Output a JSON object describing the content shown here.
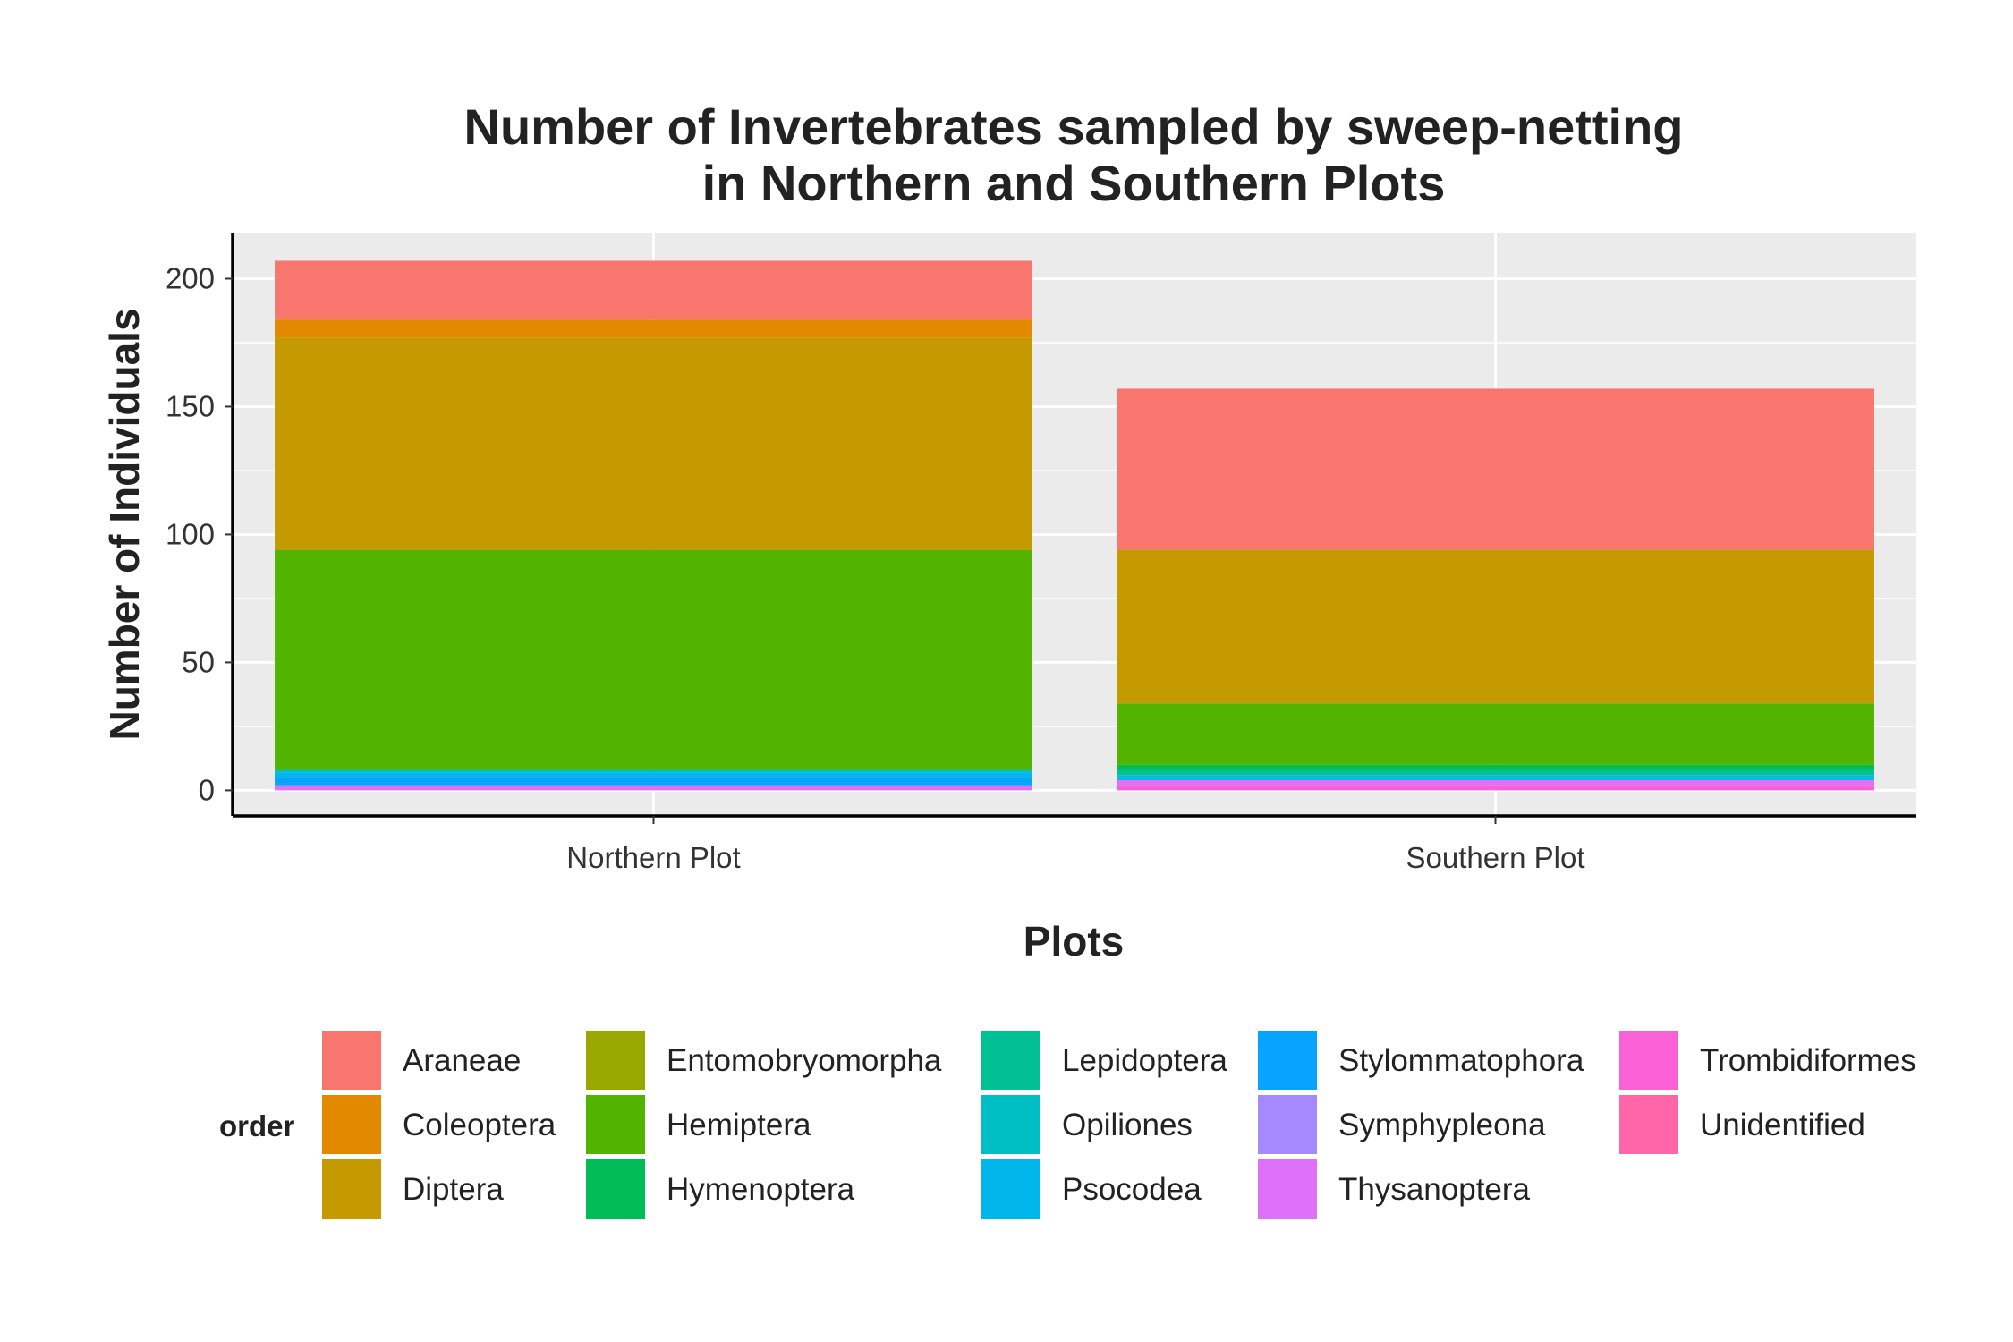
{
  "chart_data": {
    "type": "bar",
    "stacked": true,
    "title": [
      "Number of Invertebrates sampled by sweep-netting",
      "in Northern and Southern Plots"
    ],
    "xlabel": "Plots",
    "ylabel": "Number of Individuals",
    "categories": [
      "Northern Plot",
      "Southern Plot"
    ],
    "ylim": [
      -10,
      218
    ],
    "yticks": [
      0,
      50,
      100,
      150,
      200
    ],
    "grid": true,
    "legend": {
      "title": "order",
      "position": "bottom",
      "columns": 5
    },
    "series": [
      {
        "name": "Araneae",
        "color": "#F8766D",
        "values": [
          23,
          63
        ]
      },
      {
        "name": "Coleoptera",
        "color": "#E38900",
        "values": [
          7,
          0
        ]
      },
      {
        "name": "Diptera",
        "color": "#C49A00",
        "values": [
          83,
          60
        ]
      },
      {
        "name": "Entomobryomorpha",
        "color": "#99A800",
        "values": [
          0,
          0
        ]
      },
      {
        "name": "Hemiptera",
        "color": "#53B400",
        "values": [
          86,
          24
        ]
      },
      {
        "name": "Hymenoptera",
        "color": "#00BC56",
        "values": [
          0,
          2
        ]
      },
      {
        "name": "Lepidoptera",
        "color": "#00C094",
        "values": [
          0,
          2
        ]
      },
      {
        "name": "Opiliones",
        "color": "#00BFC4",
        "values": [
          1,
          1
        ]
      },
      {
        "name": "Psocodea",
        "color": "#00B6EB",
        "values": [
          2,
          1
        ]
      },
      {
        "name": "Stylommatophora",
        "color": "#06A4FF",
        "values": [
          3,
          0
        ]
      },
      {
        "name": "Symphypleona",
        "color": "#A58AFF",
        "values": [
          0,
          0
        ]
      },
      {
        "name": "Thysanoptera",
        "color": "#DF70F8",
        "values": [
          2,
          2
        ]
      },
      {
        "name": "Trombidiformes",
        "color": "#FB61D7",
        "values": [
          0,
          2
        ]
      },
      {
        "name": "Unidentified",
        "color": "#FF66A8",
        "values": [
          0,
          0
        ]
      }
    ]
  }
}
